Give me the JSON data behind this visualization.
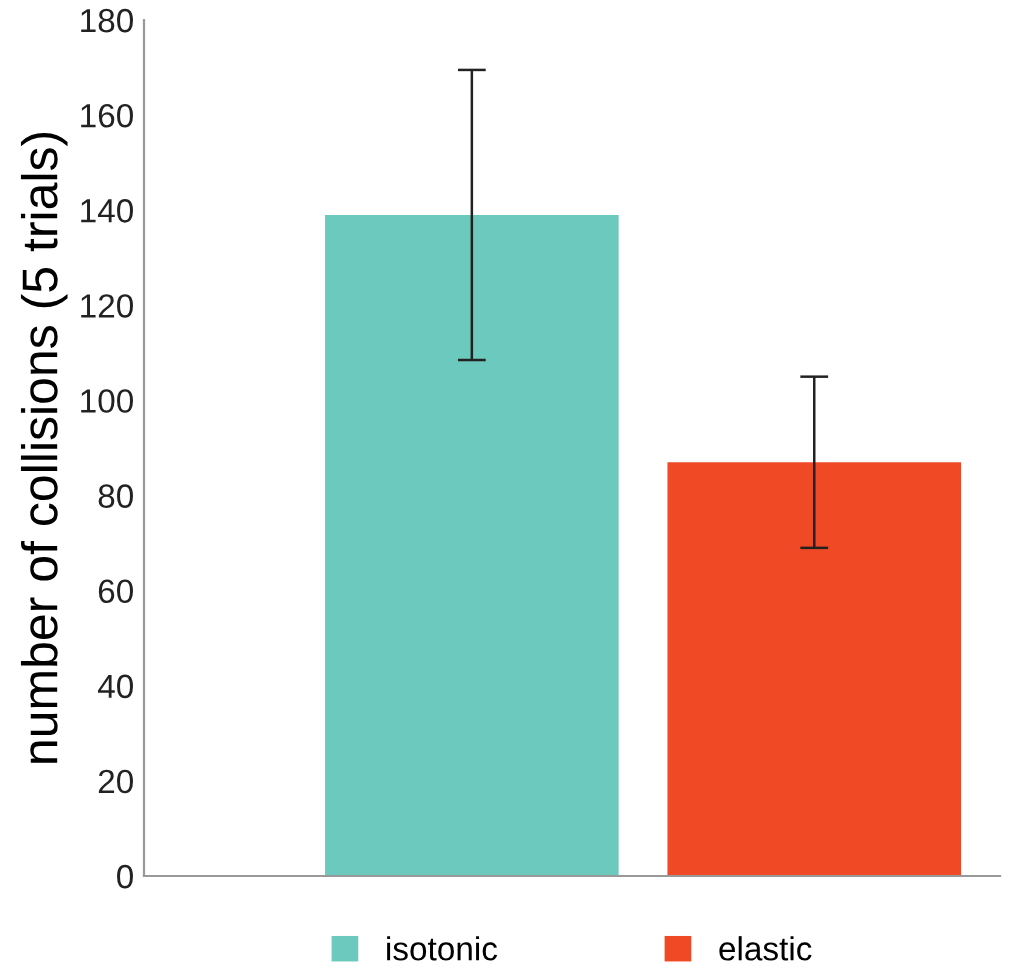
{
  "chart_data": {
    "type": "bar",
    "ylabel": "number of collisions (5 trials)",
    "categories": [
      null
    ],
    "series": [
      {
        "name": "isotonic",
        "color": "#6cc9bd",
        "values": [
          139
        ],
        "errors": [
          [
            108.5,
            169.5
          ]
        ]
      },
      {
        "name": "elastic",
        "color": "#ef4a25",
        "values": [
          87
        ],
        "errors": [
          [
            69,
            105
          ]
        ]
      }
    ],
    "ylim": [
      0,
      180
    ],
    "yticks": [
      0,
      20,
      40,
      60,
      80,
      100,
      120,
      140,
      160,
      180
    ],
    "grid": false,
    "legend": "bottom"
  }
}
